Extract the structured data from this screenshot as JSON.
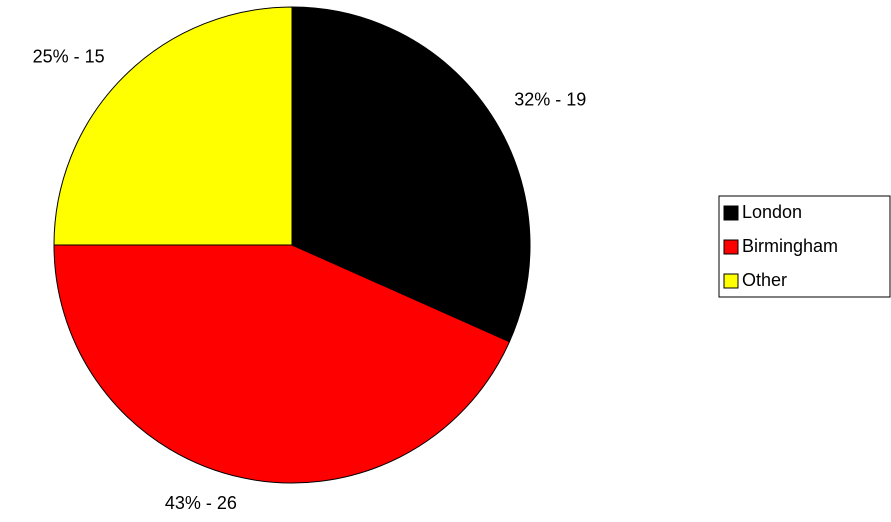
{
  "chart_data": {
    "type": "pie",
    "categories": [
      "London",
      "Birmingham",
      "Other"
    ],
    "values": [
      19,
      26,
      15
    ],
    "value_labels": [
      "32% - 19",
      "43% - 26",
      "25% - 15"
    ],
    "colors": [
      "#000000",
      "#ff0000",
      "#ffff00"
    ],
    "legend": "right"
  }
}
